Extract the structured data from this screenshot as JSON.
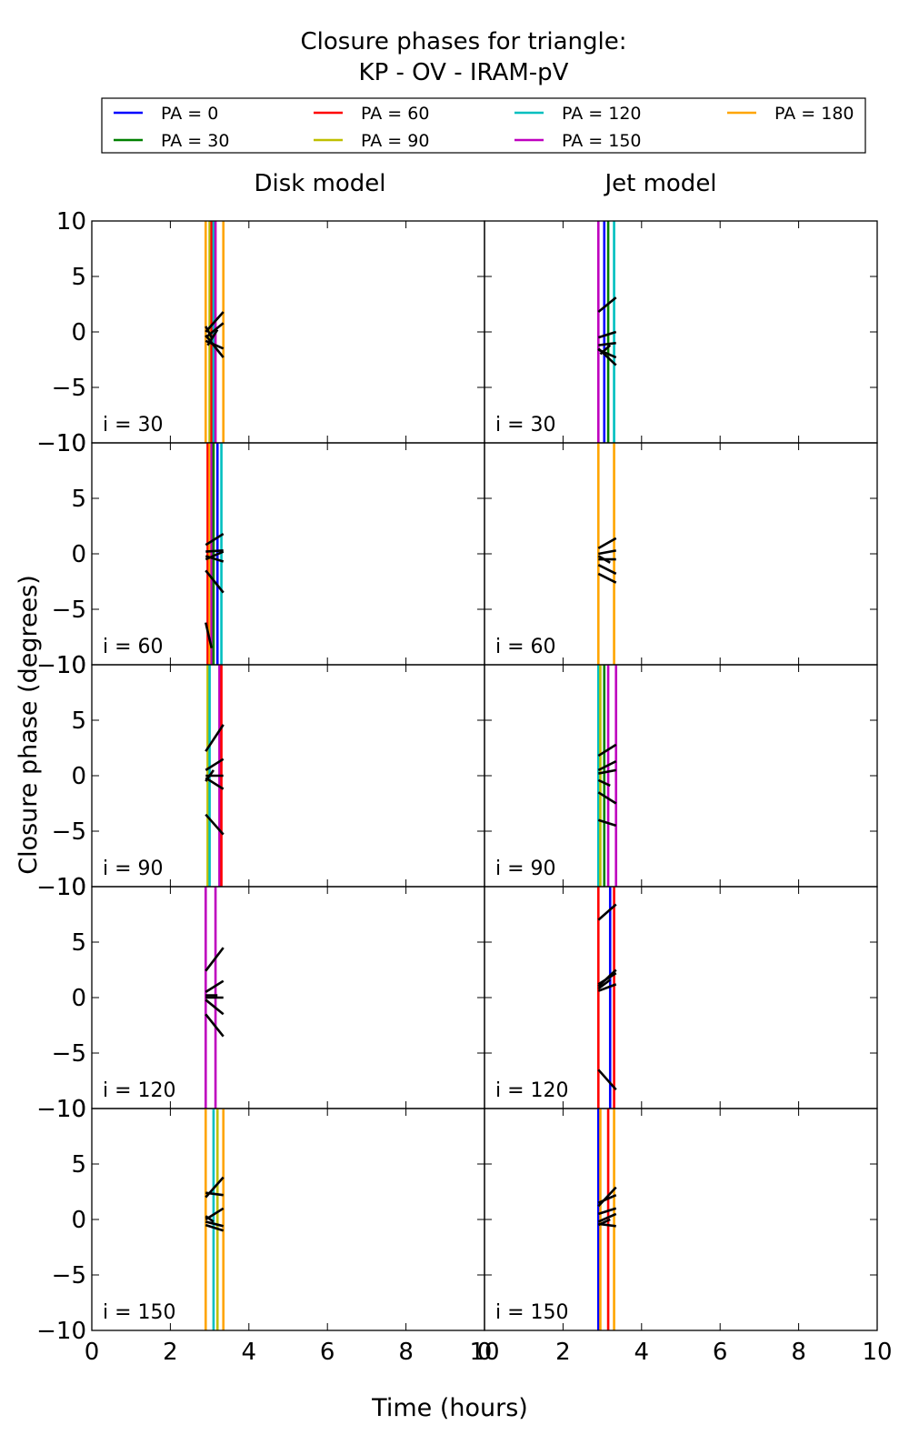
{
  "chart_data": {
    "type": "line",
    "title": [
      "Closure phases for triangle:",
      "KP - OV - IRAM-pV"
    ],
    "xlabel": "Time (hours)",
    "ylabel": "Closure phase (degrees)",
    "xlim": [
      0,
      10
    ],
    "ylim": [
      -10,
      10
    ],
    "xticks": [
      0,
      2,
      4,
      6,
      8,
      10
    ],
    "yticks": [
      -10,
      -5,
      0,
      5,
      10
    ],
    "legend": {
      "placement": "top",
      "entries": [
        {
          "label": "PA = 0",
          "color": "#0000ff"
        },
        {
          "label": "PA = 30",
          "color": "#008000"
        },
        {
          "label": "PA = 60",
          "color": "#ff0000"
        },
        {
          "label": "PA = 90",
          "color": "#bfbf00"
        },
        {
          "label": "PA = 120",
          "color": "#00bfbf"
        },
        {
          "label": "PA = 150",
          "color": "#bf00bf"
        },
        {
          "label": "PA = 180",
          "color": "#ffa500"
        }
      ]
    },
    "columns": [
      "Disk model",
      "Jet model"
    ],
    "rows": [
      "i = 30",
      "i = 60",
      "i = 90",
      "i = 120",
      "i = 150"
    ],
    "panels": [
      [
        {
          "vlines": [
            {
              "x": 2.9,
              "pa": 180
            },
            {
              "x": 3.0,
              "pa": 90
            },
            {
              "x": 3.05,
              "pa": 60
            },
            {
              "x": 3.1,
              "pa": 120
            },
            {
              "x": 3.15,
              "pa": 150
            },
            {
              "x": 3.35,
              "pa": 180
            }
          ],
          "segments": [
            [
              2.9,
              0.0,
              3.35,
              1.8
            ],
            [
              2.9,
              -0.5,
              3.35,
              0.8
            ],
            [
              2.9,
              -0.8,
              3.35,
              -1.5
            ],
            [
              2.9,
              -0.3,
              3.35,
              -2.3
            ],
            [
              2.95,
              -1.2,
              3.2,
              0.2
            ],
            [
              2.9,
              0.5,
              3.05,
              -0.5
            ]
          ]
        },
        {
          "vlines": [
            {
              "x": 2.95,
              "pa": 60
            },
            {
              "x": 3.0,
              "pa": 180
            },
            {
              "x": 3.05,
              "pa": 150
            },
            {
              "x": 3.1,
              "pa": 30
            },
            {
              "x": 3.2,
              "pa": 0
            },
            {
              "x": 3.3,
              "pa": 120
            }
          ],
          "segments": [
            [
              2.9,
              0.8,
              3.35,
              1.8
            ],
            [
              2.9,
              0.2,
              3.35,
              0.3
            ],
            [
              2.9,
              -0.2,
              3.35,
              -0.7
            ],
            [
              2.9,
              -1.5,
              3.35,
              -3.5
            ],
            [
              2.9,
              -6.2,
              3.05,
              -8.5
            ],
            [
              2.9,
              -0.5,
              3.35,
              0.2
            ]
          ]
        },
        {
          "vlines": [
            {
              "x": 2.95,
              "pa": 90
            },
            {
              "x": 3.0,
              "pa": 120
            },
            {
              "x": 3.25,
              "pa": 150
            },
            {
              "x": 3.3,
              "pa": 60
            }
          ],
          "segments": [
            [
              2.9,
              2.2,
              3.35,
              4.6
            ],
            [
              2.9,
              0.5,
              3.35,
              1.5
            ],
            [
              2.9,
              0.0,
              3.35,
              0.0
            ],
            [
              2.9,
              -0.2,
              3.35,
              -1.2
            ],
            [
              2.9,
              -3.5,
              3.35,
              -5.3
            ],
            [
              2.9,
              -0.5,
              3.1,
              0.5
            ]
          ]
        },
        {
          "vlines": [
            {
              "x": 2.9,
              "pa": 150
            },
            {
              "x": 3.15,
              "pa": 150
            }
          ],
          "segments": [
            [
              2.9,
              2.4,
              3.35,
              4.5
            ],
            [
              2.9,
              0.5,
              3.35,
              1.5
            ],
            [
              2.9,
              0.0,
              3.35,
              0.0
            ],
            [
              2.9,
              -0.2,
              3.35,
              -1.5
            ],
            [
              2.9,
              -1.5,
              3.35,
              -3.5
            ],
            [
              2.9,
              0.2,
              3.2,
              0.2
            ]
          ]
        },
        {
          "vlines": [
            {
              "x": 2.9,
              "pa": 180
            },
            {
              "x": 3.1,
              "pa": 120
            },
            {
              "x": 3.2,
              "pa": 90
            },
            {
              "x": 3.35,
              "pa": 180
            }
          ],
          "segments": [
            [
              2.9,
              2.0,
              3.35,
              3.8
            ],
            [
              2.9,
              2.4,
              3.35,
              2.2
            ],
            [
              2.9,
              0.0,
              3.35,
              1.0
            ],
            [
              2.9,
              -0.2,
              3.35,
              -0.6
            ],
            [
              2.9,
              -0.5,
              3.35,
              -1.0
            ],
            [
              2.9,
              0.3,
              3.1,
              -0.2
            ]
          ]
        }
      ],
      [
        {
          "vlines": [
            {
              "x": 2.9,
              "pa": 150
            },
            {
              "x": 3.05,
              "pa": 0
            },
            {
              "x": 3.15,
              "pa": 30
            },
            {
              "x": 3.3,
              "pa": 120
            }
          ],
          "segments": [
            [
              2.9,
              1.8,
              3.35,
              3.1
            ],
            [
              2.9,
              -0.5,
              3.35,
              0.0
            ],
            [
              2.9,
              -1.2,
              3.35,
              -1.0
            ],
            [
              2.9,
              -1.6,
              3.35,
              -2.3
            ],
            [
              2.9,
              -1.5,
              3.35,
              -3.0
            ],
            [
              2.95,
              -2.0,
              3.2,
              -1.2
            ]
          ]
        },
        {
          "vlines": [
            {
              "x": 2.9,
              "pa": 180
            },
            {
              "x": 3.3,
              "pa": 180
            }
          ],
          "segments": [
            [
              2.9,
              0.5,
              3.35,
              1.4
            ],
            [
              2.9,
              0.0,
              3.35,
              0.3
            ],
            [
              2.9,
              -0.5,
              3.35,
              -0.5
            ],
            [
              2.9,
              -1.0,
              3.35,
              -1.8
            ],
            [
              2.9,
              -1.8,
              3.35,
              -2.6
            ],
            [
              2.9,
              -0.2,
              3.2,
              -0.8
            ]
          ]
        },
        {
          "vlines": [
            {
              "x": 2.9,
              "pa": 120
            },
            {
              "x": 2.95,
              "pa": 90
            },
            {
              "x": 3.05,
              "pa": 30
            },
            {
              "x": 3.15,
              "pa": 150
            },
            {
              "x": 3.35,
              "pa": 150
            }
          ],
          "segments": [
            [
              2.9,
              1.8,
              3.35,
              2.8
            ],
            [
              2.9,
              0.5,
              3.35,
              1.3
            ],
            [
              2.9,
              0.2,
              3.35,
              0.5
            ],
            [
              2.9,
              -1.5,
              3.35,
              -2.5
            ],
            [
              2.9,
              -4.0,
              3.35,
              -4.5
            ],
            [
              2.9,
              -0.4,
              3.2,
              -0.9
            ]
          ]
        },
        {
          "vlines": [
            {
              "x": 2.9,
              "pa": 60
            },
            {
              "x": 3.2,
              "pa": 0
            },
            {
              "x": 3.3,
              "pa": 60
            }
          ],
          "segments": [
            [
              2.9,
              7.0,
              3.35,
              8.4
            ],
            [
              2.9,
              1.0,
              3.35,
              2.5
            ],
            [
              2.9,
              0.6,
              3.35,
              1.2
            ],
            [
              2.9,
              1.2,
              3.35,
              2.2
            ],
            [
              2.9,
              -6.5,
              3.35,
              -8.3
            ],
            [
              2.9,
              0.8,
              3.2,
              1.6
            ]
          ]
        },
        {
          "vlines": [
            {
              "x": 2.9,
              "pa": 0
            },
            {
              "x": 2.95,
              "pa": 180
            },
            {
              "x": 3.15,
              "pa": 60
            },
            {
              "x": 3.3,
              "pa": 180
            }
          ],
          "segments": [
            [
              2.9,
              1.2,
              3.35,
              2.9
            ],
            [
              2.9,
              0.5,
              3.35,
              1.0
            ],
            [
              2.9,
              -0.2,
              3.35,
              0.5
            ],
            [
              2.9,
              -0.4,
              3.35,
              -0.6
            ],
            [
              2.9,
              1.5,
              3.35,
              2.2
            ],
            [
              2.9,
              -0.5,
              3.2,
              0.0
            ]
          ]
        }
      ]
    ]
  }
}
